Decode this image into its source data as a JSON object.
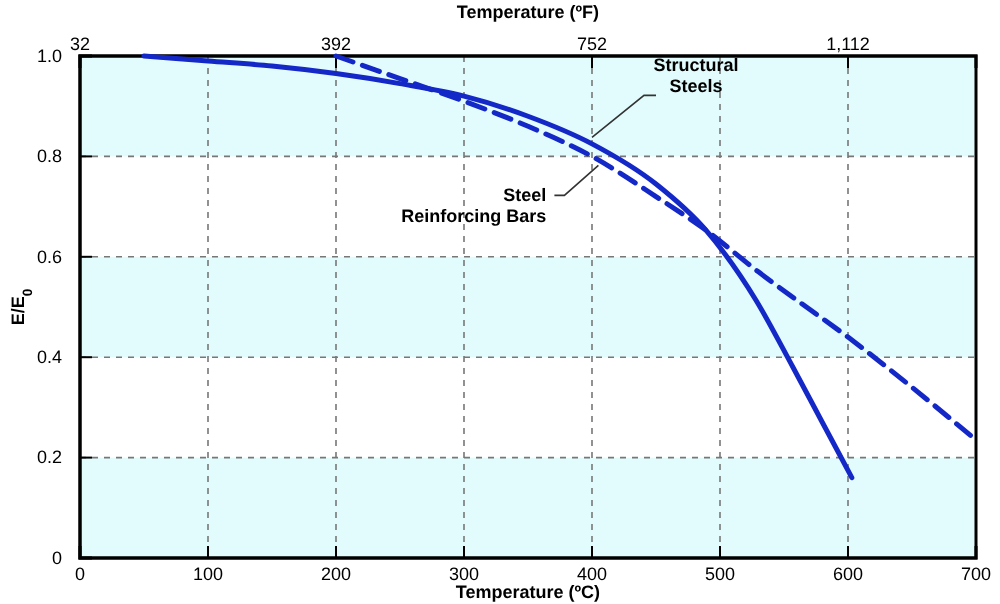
{
  "chart_data": {
    "type": "line",
    "xlabel": "Temperature (ºC)",
    "ylabel": "E/E$_{0}$",
    "x2label": "Temperature (ºF)",
    "xlim": [
      0,
      700
    ],
    "xticks": [
      0,
      100,
      200,
      300,
      400,
      500,
      600,
      700
    ],
    "x2lim": [
      32,
      1292
    ],
    "x2ticks": [
      32,
      392,
      752,
      {
        "value": 1112,
        "label": "1,112"
      }
    ],
    "ylim": [
      0,
      1
    ],
    "yticks": [
      0,
      0.2,
      0.4,
      0.6,
      0.8,
      {
        "value": 1,
        "label": "1.0"
      }
    ],
    "grid": true,
    "marker": "none",
    "bands": [
      {
        "axis": "y",
        "from": 0,
        "to": 0.2,
        "color": "#e2fcfd"
      },
      {
        "axis": "y",
        "from": 0.4,
        "to": 0.6,
        "color": "#e2fcfd"
      },
      {
        "axis": "y",
        "from": 0.8,
        "to": 1,
        "color": "#e2fcfd"
      }
    ],
    "series": [
      {
        "color": "#1428c8",
        "line_style": "solid",
        "x": [
          50,
          100,
          150,
          200,
          250,
          300,
          350,
          400,
          450,
          489,
          528,
          557,
          580,
          603
        ],
        "values": [
          1,
          0.99,
          0.98,
          0.965,
          0.945,
          0.92,
          0.88,
          0.825,
          0.745,
          0.653,
          0.514,
          0.38,
          0.27,
          0.16
        ]
      },
      {
        "color": "#1428c8",
        "line_style": "dashed",
        "x": [
          200,
          250,
          300,
          350,
          400,
          450,
          489,
          530,
          562,
          600,
          650,
          700
        ],
        "values": [
          1,
          0.955,
          0.91,
          0.86,
          0.8,
          0.72,
          0.653,
          0.57,
          0.51,
          0.44,
          0.34,
          0.235
        ]
      }
    ],
    "annotations": [
      {
        "text": "Structural Steels",
        "x": 400,
        "y": 0.83
      },
      {
        "text": "Steel Reinforcing Bars",
        "x": 405,
        "y": 0.79
      }
    ]
  }
}
